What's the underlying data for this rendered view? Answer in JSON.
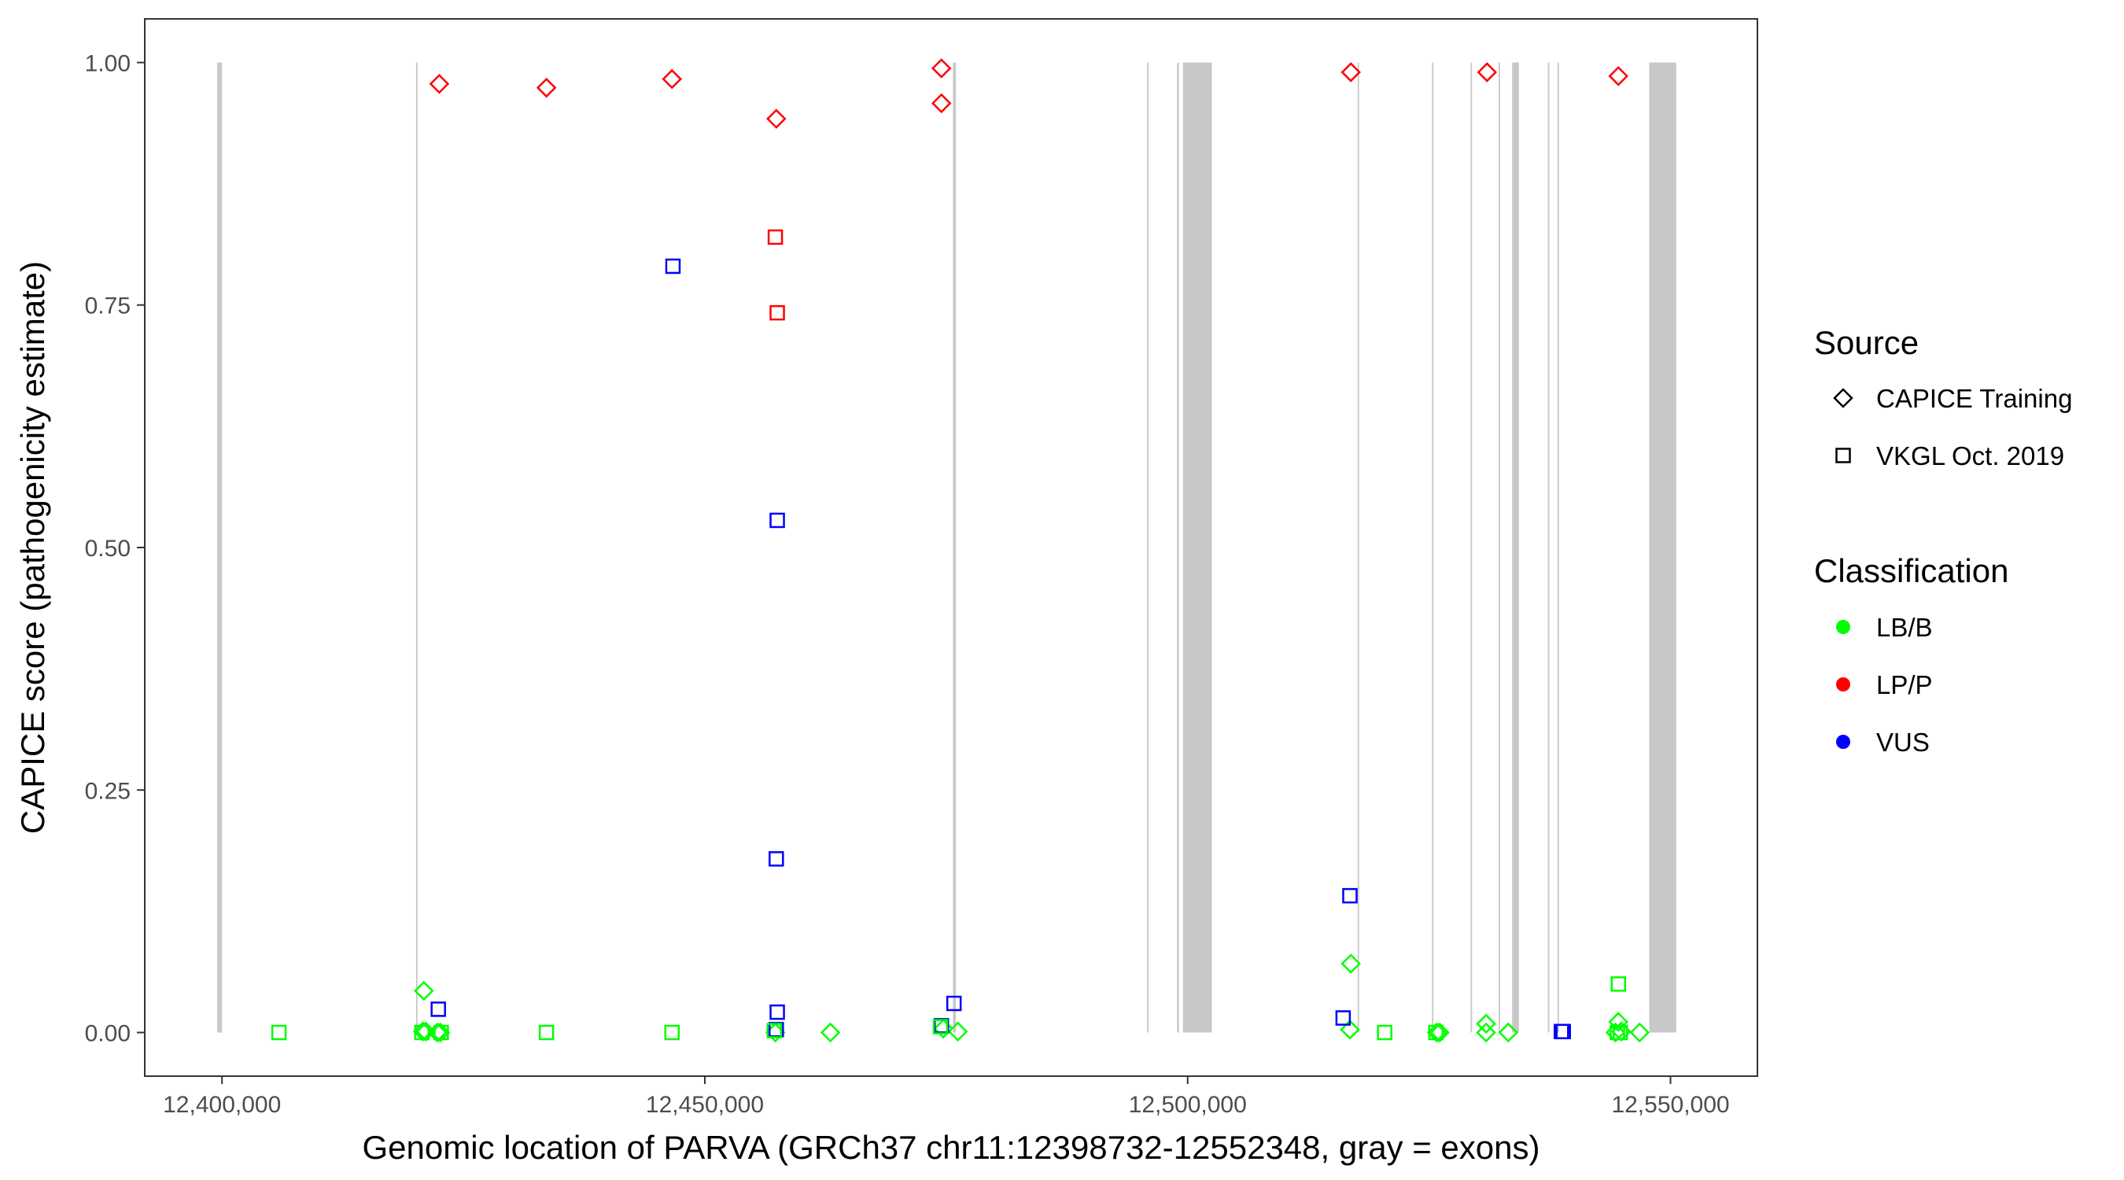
{
  "chart_data": {
    "type": "scatter",
    "title": "",
    "xlabel": "Genomic location of PARVA (GRCh37 chr11:12398732-12552348, gray = exons)",
    "ylabel": "CAPICE score (pathogenicity estimate)",
    "xlim": [
      12392000,
      12559000
    ],
    "ylim": [
      -0.045,
      1.045
    ],
    "x_ticks": [
      12400000,
      12450000,
      12500000,
      12550000
    ],
    "x_tick_labels": [
      "12,400,000",
      "12,450,000",
      "12,500,000",
      "12,550,000"
    ],
    "y_ticks": [
      0,
      0.25,
      0.5,
      0.75,
      1
    ],
    "y_tick_labels": [
      "0.00",
      "0.25",
      "0.50",
      "0.75",
      "1.00"
    ],
    "grid": false,
    "legend_position": "right",
    "exons": [
      [
        12399500,
        12400000
      ],
      [
        12420100,
        12420250
      ],
      [
        12475700,
        12476000
      ],
      [
        12495800,
        12495950
      ],
      [
        12498900,
        12499100
      ],
      [
        12499500,
        12502500
      ],
      [
        12517600,
        12517750
      ],
      [
        12525300,
        12525450
      ],
      [
        12529300,
        12529450
      ],
      [
        12532200,
        12532350
      ],
      [
        12533600,
        12534300
      ],
      [
        12537300,
        12537450
      ],
      [
        12538300,
        12538450
      ],
      [
        12547800,
        12550600
      ]
    ],
    "legend": {
      "source_title": "Source",
      "source_items": [
        {
          "label": "CAPICE Training",
          "shape": "diamond"
        },
        {
          "label": "VKGL Oct. 2019",
          "shape": "square"
        }
      ],
      "class_title": "Classification",
      "class_items": [
        {
          "label": "LB/B",
          "color": "#00ff00"
        },
        {
          "label": "LP/P",
          "color": "#ff0000"
        },
        {
          "label": "VUS",
          "color": "#0000ff"
        }
      ]
    },
    "colors": {
      "LB/B": "#00ff00",
      "LP/P": "#ff0000",
      "VUS": "#0000ff"
    },
    "series": [
      {
        "name": "CAPICE Training",
        "shape": "diamond",
        "points": [
          {
            "x": 12422500,
            "y": 0.978,
            "class": "LP/P"
          },
          {
            "x": 12433600,
            "y": 0.974,
            "class": "LP/P"
          },
          {
            "x": 12446600,
            "y": 0.983,
            "class": "LP/P"
          },
          {
            "x": 12457400,
            "y": 0.942,
            "class": "LP/P"
          },
          {
            "x": 12474500,
            "y": 0.994,
            "class": "LP/P"
          },
          {
            "x": 12474500,
            "y": 0.958,
            "class": "LP/P"
          },
          {
            "x": 12516900,
            "y": 0.99,
            "class": "LP/P"
          },
          {
            "x": 12531000,
            "y": 0.99,
            "class": "LP/P"
          },
          {
            "x": 12544600,
            "y": 0.986,
            "class": "LP/P"
          },
          {
            "x": 12420900,
            "y": 0.043,
            "class": "LB/B"
          },
          {
            "x": 12420800,
            "y": 0.001,
            "class": "LB/B"
          },
          {
            "x": 12421100,
            "y": 0.001,
            "class": "LB/B"
          },
          {
            "x": 12422300,
            "y": 0.0,
            "class": "LB/B"
          },
          {
            "x": 12422600,
            "y": 0.0,
            "class": "LB/B"
          },
          {
            "x": 12457300,
            "y": 0.0,
            "class": "LB/B"
          },
          {
            "x": 12463000,
            "y": 0.0,
            "class": "LB/B"
          },
          {
            "x": 12474700,
            "y": 0.004,
            "class": "LB/B"
          },
          {
            "x": 12476200,
            "y": 0.001,
            "class": "LB/B"
          },
          {
            "x": 12516900,
            "y": 0.071,
            "class": "LB/B"
          },
          {
            "x": 12516800,
            "y": 0.003,
            "class": "LB/B"
          },
          {
            "x": 12525800,
            "y": 0.0,
            "class": "LB/B"
          },
          {
            "x": 12526100,
            "y": 0.0,
            "class": "LB/B"
          },
          {
            "x": 12530900,
            "y": 0.009,
            "class": "LB/B"
          },
          {
            "x": 12530900,
            "y": 0.0,
            "class": "LB/B"
          },
          {
            "x": 12533200,
            "y": 0.0,
            "class": "LB/B"
          },
          {
            "x": 12544600,
            "y": 0.011,
            "class": "LB/B"
          },
          {
            "x": 12544300,
            "y": 0.0,
            "class": "LB/B"
          },
          {
            "x": 12544900,
            "y": 0.001,
            "class": "LB/B"
          },
          {
            "x": 12546800,
            "y": 0.0,
            "class": "LB/B"
          }
        ]
      },
      {
        "name": "VKGL Oct. 2019",
        "shape": "square",
        "points": [
          {
            "x": 12457300,
            "y": 0.82,
            "class": "LP/P"
          },
          {
            "x": 12457500,
            "y": 0.742,
            "class": "LP/P"
          },
          {
            "x": 12446700,
            "y": 0.79,
            "class": "VUS"
          },
          {
            "x": 12457500,
            "y": 0.528,
            "class": "VUS"
          },
          {
            "x": 12457400,
            "y": 0.179,
            "class": "VUS"
          },
          {
            "x": 12457500,
            "y": 0.021,
            "class": "VUS"
          },
          {
            "x": 12457400,
            "y": 0.003,
            "class": "VUS"
          },
          {
            "x": 12422400,
            "y": 0.024,
            "class": "VUS"
          },
          {
            "x": 12474500,
            "y": 0.007,
            "class": "VUS"
          },
          {
            "x": 12475800,
            "y": 0.03,
            "class": "VUS"
          },
          {
            "x": 12516800,
            "y": 0.141,
            "class": "VUS"
          },
          {
            "x": 12516100,
            "y": 0.015,
            "class": "VUS"
          },
          {
            "x": 12538700,
            "y": 0.001,
            "class": "VUS"
          },
          {
            "x": 12538900,
            "y": 0.001,
            "class": "VUS"
          },
          {
            "x": 12405900,
            "y": 0.0,
            "class": "LB/B"
          },
          {
            "x": 12420700,
            "y": 0.0,
            "class": "LB/B"
          },
          {
            "x": 12422700,
            "y": 0.0,
            "class": "LB/B"
          },
          {
            "x": 12433600,
            "y": 0.0,
            "class": "LB/B"
          },
          {
            "x": 12446600,
            "y": 0.0,
            "class": "LB/B"
          },
          {
            "x": 12457200,
            "y": 0.002,
            "class": "LB/B"
          },
          {
            "x": 12474400,
            "y": 0.006,
            "class": "LB/B"
          },
          {
            "x": 12520400,
            "y": 0.0,
            "class": "LB/B"
          },
          {
            "x": 12525700,
            "y": 0.0,
            "class": "LB/B"
          },
          {
            "x": 12544600,
            "y": 0.05,
            "class": "LB/B"
          },
          {
            "x": 12544500,
            "y": 0.0,
            "class": "LB/B"
          },
          {
            "x": 12544800,
            "y": 0.0,
            "class": "LB/B"
          }
        ]
      }
    ]
  }
}
